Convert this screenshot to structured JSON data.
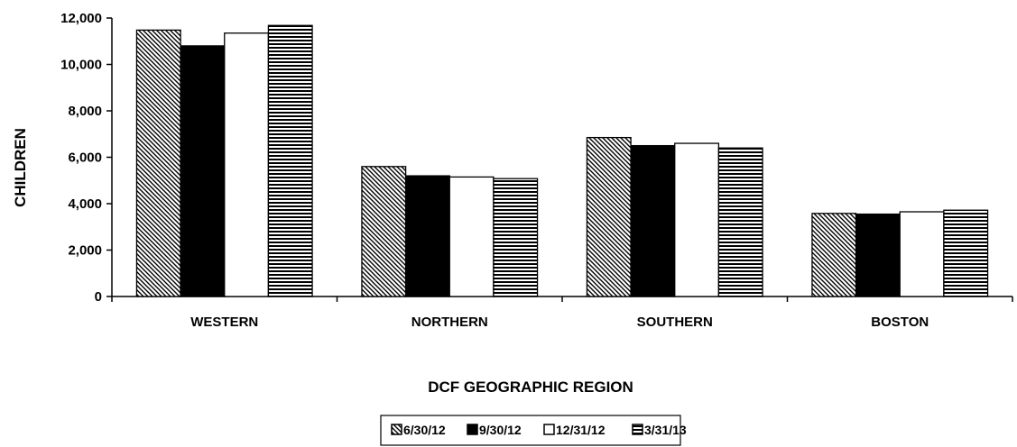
{
  "chart_data": {
    "type": "bar",
    "title": "",
    "xlabel": "DCF GEOGRAPHIC REGION",
    "ylabel": "CHILDREN",
    "categories": [
      "WESTERN",
      "NORTHERN",
      "SOUTHERN",
      "BOSTON"
    ],
    "ylim": [
      0,
      12000
    ],
    "yticks": [
      "0",
      "2,000",
      "4,000",
      "6,000",
      "8,000",
      "10,000",
      "12,000"
    ],
    "grid": false,
    "legend_position": "bottom",
    "series": [
      {
        "name": "6/30/12",
        "values": [
          11480,
          5600,
          6850,
          3580
        ],
        "pattern": "diagonal-hatch"
      },
      {
        "name": "9/30/12",
        "values": [
          10800,
          5200,
          6500,
          3550
        ],
        "pattern": "solid-black"
      },
      {
        "name": "12/31/12",
        "values": [
          11350,
          5150,
          6600,
          3650
        ],
        "pattern": "white"
      },
      {
        "name": "3/31/13",
        "values": [
          11680,
          5080,
          6400,
          3720
        ],
        "pattern": "horizontal-stripes"
      }
    ]
  }
}
